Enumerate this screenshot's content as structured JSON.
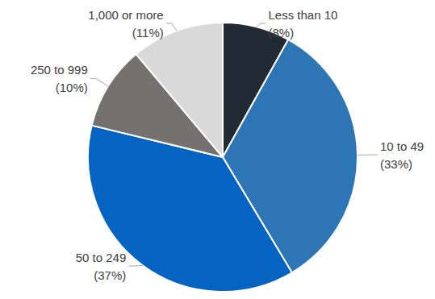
{
  "chart_data": {
    "type": "pie",
    "categories": [
      "Less than 10",
      "10 to 49",
      "50 to 249",
      "250 to 999",
      "1,000 or more"
    ],
    "values": [
      8,
      33,
      37,
      10,
      11
    ],
    "value_labels": [
      "(8%)",
      "(33%)",
      "(37%)",
      "(10%)",
      "(11%)"
    ],
    "colors": [
      "#222a35",
      "#2e75b6",
      "#0563c1",
      "#767171",
      "#d9d9d9"
    ],
    "data_labels": true
  }
}
